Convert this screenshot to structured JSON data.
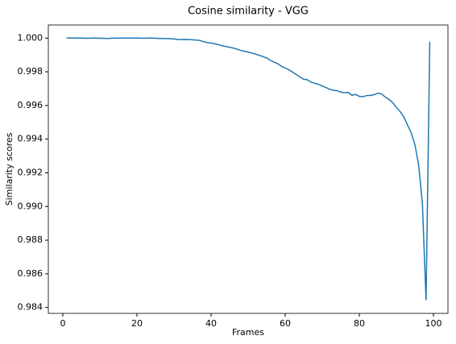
{
  "chart_data": {
    "type": "line",
    "title": "Cosine similarity - VGG",
    "xlabel": "Frames",
    "ylabel": "Similarity scores",
    "x": [
      1,
      2,
      3,
      4,
      5,
      6,
      7,
      8,
      9,
      10,
      11,
      12,
      13,
      14,
      15,
      16,
      17,
      18,
      19,
      20,
      21,
      22,
      23,
      24,
      25,
      26,
      27,
      28,
      29,
      30,
      31,
      32,
      33,
      34,
      35,
      36,
      37,
      38,
      39,
      40,
      41,
      42,
      43,
      44,
      45,
      46,
      47,
      48,
      49,
      50,
      51,
      52,
      53,
      54,
      55,
      56,
      57,
      58,
      59,
      60,
      61,
      62,
      63,
      64,
      65,
      66,
      67,
      68,
      69,
      70,
      71,
      72,
      73,
      74,
      75,
      76,
      77,
      78,
      79,
      80,
      81,
      82,
      83,
      84,
      85,
      86,
      87,
      88,
      89,
      90,
      91,
      92,
      93,
      94,
      95,
      96,
      97,
      98,
      99
    ],
    "series": [
      {
        "name": "VGG",
        "color": "#1f77b4",
        "values": [
          1.0,
          1.0,
          1.0,
          1.0,
          1.0,
          0.99999,
          0.99999,
          1.0,
          1.0,
          0.99999,
          0.99999,
          0.99998,
          0.99999,
          1.0,
          1.0,
          1.0,
          1.0,
          1.0,
          1.0,
          1.0,
          1.0,
          0.99999,
          1.0,
          1.0,
          0.99999,
          0.99998,
          0.99998,
          0.99997,
          0.99996,
          0.99995,
          0.99992,
          0.99991,
          0.99992,
          0.99991,
          0.9999,
          0.99988,
          0.99986,
          0.99978,
          0.99974,
          0.9997,
          0.99966,
          0.99961,
          0.99955,
          0.9995,
          0.99946,
          0.99941,
          0.99934,
          0.99927,
          0.99922,
          0.99917,
          0.99911,
          0.99905,
          0.99898,
          0.9989,
          0.99882,
          0.99868,
          0.99857,
          0.99848,
          0.99832,
          0.99822,
          0.99812,
          0.99798,
          0.99784,
          0.99768,
          0.99756,
          0.99752,
          0.99738,
          0.99732,
          0.99725,
          0.99716,
          0.99706,
          0.99696,
          0.9969,
          0.99688,
          0.99679,
          0.99676,
          0.99677,
          0.99661,
          0.99665,
          0.99654,
          0.99652,
          0.99659,
          0.9966,
          0.99664,
          0.99673,
          0.99668,
          0.9965,
          0.99636,
          0.99617,
          0.99588,
          0.99564,
          0.99531,
          0.99484,
          0.99437,
          0.99366,
          0.99247,
          0.9902,
          0.98443,
          0.99978
        ]
      }
    ],
    "xlim": [
      -3.9,
      103.9
    ],
    "xticks": [
      0,
      20,
      40,
      60,
      80,
      100
    ],
    "ylim": [
      0.98365,
      1.00078
    ],
    "yticks": [
      0.984,
      0.986,
      0.988,
      {
        "value": 0.99,
        "label": "0.990"
      },
      0.992,
      0.994,
      0.996,
      0.998,
      {
        "value": 1.0,
        "label": "1.000"
      }
    ]
  }
}
